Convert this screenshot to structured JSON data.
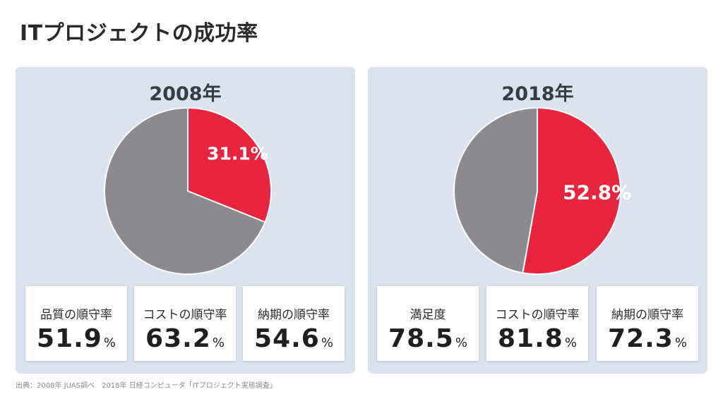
{
  "title": "ITプロジェクトの成功率",
  "source": "出典：2008年 JUAS調べ　2018年 日経コンピュータ「ITプロジェクト実態調査」",
  "colors": {
    "highlight": "#e8243e",
    "rest": "#8c8a8e",
    "panel": "#dce3ef"
  },
  "chart_data": [
    {
      "type": "pie",
      "title": "2008年",
      "slices": [
        {
          "label": "31.1%",
          "value": 31.1,
          "color": "#e8243e"
        },
        {
          "label": "",
          "value": 68.9,
          "color": "#8c8a8e"
        }
      ]
    },
    {
      "type": "pie",
      "title": "2018年",
      "slices": [
        {
          "label": "52.8%",
          "value": 52.8,
          "color": "#e8243e"
        },
        {
          "label": "",
          "value": 47.2,
          "color": "#8c8a8e"
        }
      ]
    }
  ],
  "panels": [
    {
      "year": "2008年",
      "stats": [
        {
          "label": "品質の順守率",
          "value": "51.9",
          "unit": "%"
        },
        {
          "label": "コストの順守率",
          "value": "63.2",
          "unit": "%"
        },
        {
          "label": "納期の順守率",
          "value": "54.6",
          "unit": "%"
        }
      ]
    },
    {
      "year": "2018年",
      "stats": [
        {
          "label": "満足度",
          "value": "78.5",
          "unit": "%"
        },
        {
          "label": "コストの順守率",
          "value": "81.8",
          "unit": "%"
        },
        {
          "label": "納期の順守率",
          "value": "72.3",
          "unit": "%"
        }
      ]
    }
  ]
}
